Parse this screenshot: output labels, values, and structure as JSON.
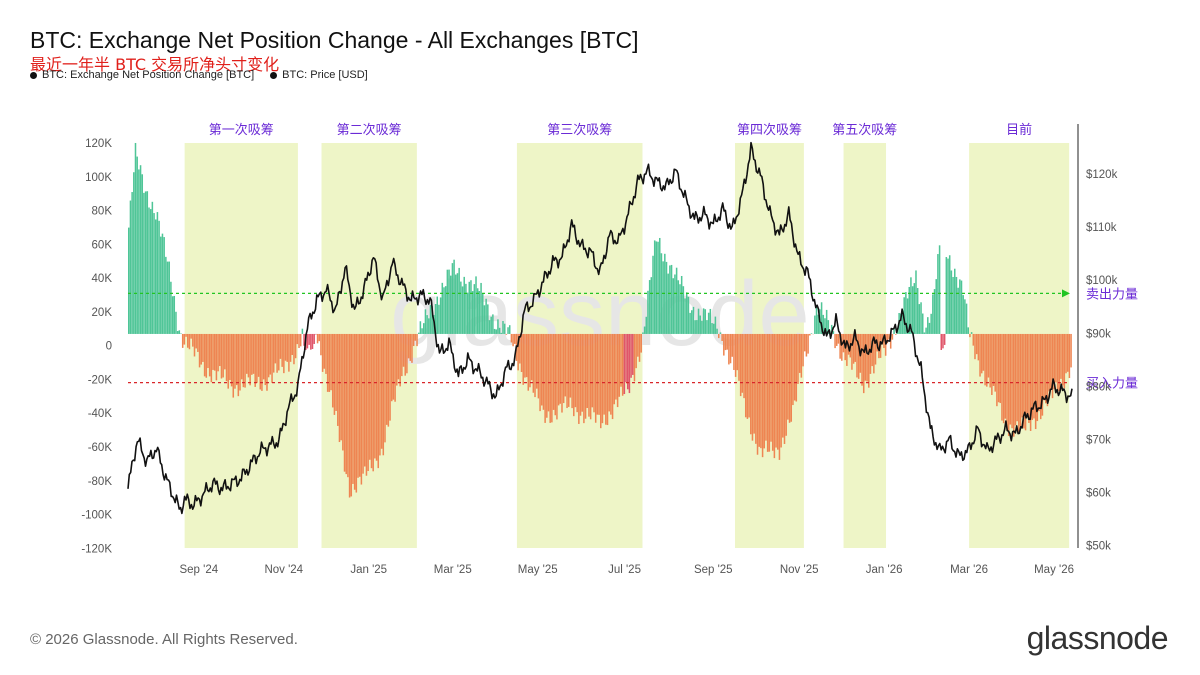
{
  "header": {
    "title": "BTC: Exchange Net Position Change - All Exchanges [BTC]",
    "subtitle": "最近一年半 BTC 交易所净头寸变化"
  },
  "legend": [
    {
      "label": "BTC: Exchange Net Position Change [BTC]",
      "color": "#111111"
    },
    {
      "label": "BTC: Price [USD]",
      "color": "#111111"
    }
  ],
  "footer": {
    "copyright": "© 2026 Glassnode. All Rights Reserved.",
    "brand": "glassnode"
  },
  "chart_data": {
    "type": "bar",
    "colors": {
      "positive": "#4fc597",
      "negative": "#ee8552",
      "negative_alt": "#e0566a",
      "price_line": "#111111",
      "highlight": "#eef5c7",
      "sell_line": "#22c522",
      "buy_line": "#d9272a",
      "phase_label": "#6b2bd6"
    },
    "x_ticks": [
      "Sep '24",
      "Nov '24",
      "Jan '25",
      "Mar '25",
      "May '25",
      "Jul '25",
      "Sep '25",
      "Nov '25",
      "Jan '26",
      "Mar '26",
      "May '26"
    ],
    "y_left": {
      "ticks": [
        "120K",
        "100K",
        "80K",
        "60K",
        "40K",
        "20K",
        "0",
        "-20K",
        "-40K",
        "-60K",
        "-80K",
        "-100K",
        "-120K"
      ],
      "range": [
        -132000,
        127000
      ]
    },
    "y_right": {
      "ticks": [
        "$120k",
        "$110k",
        "$100k",
        "$90k",
        "$80k",
        "$70k",
        "$60k",
        "$50k"
      ],
      "range": [
        50000,
        128000
      ]
    },
    "phases": [
      {
        "label": "第一次吸筹",
        "start": 0.06,
        "end": 0.18
      },
      {
        "label": "第二次吸筹",
        "start": 0.205,
        "end": 0.306
      },
      {
        "label": "第三次吸筹",
        "start": 0.412,
        "end": 0.545
      },
      {
        "label": "第四次吸筹",
        "start": 0.643,
        "end": 0.716
      },
      {
        "label": "第五次吸筹",
        "start": 0.758,
        "end": 0.803
      },
      {
        "label": "目前",
        "start": 0.891,
        "end": 0.997
      }
    ],
    "ref_lines": [
      {
        "label": "卖出力量",
        "value": 25000,
        "color": "#22c522"
      },
      {
        "label": "买入力量",
        "value": -30000,
        "color": "#d9272a"
      }
    ],
    "net_position_keyframes": [
      [
        0.0,
        60000
      ],
      [
        0.008,
        110000
      ],
      [
        0.018,
        90000
      ],
      [
        0.03,
        75000
      ],
      [
        0.045,
        35000
      ],
      [
        0.055,
        2000
      ],
      [
        0.06,
        -5000
      ],
      [
        0.08,
        -20000
      ],
      [
        0.11,
        -32000
      ],
      [
        0.14,
        -30000
      ],
      [
        0.165,
        -22000
      ],
      [
        0.18,
        -8000
      ],
      [
        0.19,
        5000
      ],
      [
        0.2,
        2000
      ],
      [
        0.215,
        -40000
      ],
      [
        0.235,
        -95000
      ],
      [
        0.25,
        -90000
      ],
      [
        0.27,
        -70000
      ],
      [
        0.29,
        -25000
      ],
      [
        0.306,
        -5000
      ],
      [
        0.32,
        15000
      ],
      [
        0.345,
        40000
      ],
      [
        0.37,
        28000
      ],
      [
        0.39,
        8000
      ],
      [
        0.405,
        -2000
      ],
      [
        0.412,
        -15000
      ],
      [
        0.44,
        -50000
      ],
      [
        0.47,
        -45000
      ],
      [
        0.5,
        -55000
      ],
      [
        0.53,
        -35000
      ],
      [
        0.545,
        -5000
      ],
      [
        0.56,
        60000
      ],
      [
        0.58,
        35000
      ],
      [
        0.6,
        15000
      ],
      [
        0.625,
        5000
      ],
      [
        0.643,
        -25000
      ],
      [
        0.67,
        -75000
      ],
      [
        0.69,
        -70000
      ],
      [
        0.705,
        -50000
      ],
      [
        0.716,
        -15000
      ],
      [
        0.73,
        15000
      ],
      [
        0.745,
        5000
      ],
      [
        0.758,
        -15000
      ],
      [
        0.78,
        -30000
      ],
      [
        0.803,
        -10000
      ],
      [
        0.82,
        15000
      ],
      [
        0.835,
        35000
      ],
      [
        0.845,
        5000
      ],
      [
        0.852,
        15000
      ],
      [
        0.862,
        60000
      ],
      [
        0.872,
        45000
      ],
      [
        0.885,
        25000
      ],
      [
        0.891,
        0
      ],
      [
        0.91,
        -30000
      ],
      [
        0.93,
        -55000
      ],
      [
        0.95,
        -60000
      ],
      [
        0.97,
        -45000
      ],
      [
        0.985,
        -35000
      ],
      [
        0.997,
        -20000
      ]
    ],
    "price_keyframes": [
      [
        0.0,
        61000
      ],
      [
        0.005,
        66000
      ],
      [
        0.01,
        70000
      ],
      [
        0.015,
        68000
      ],
      [
        0.02,
        66000
      ],
      [
        0.03,
        68500
      ],
      [
        0.04,
        63000
      ],
      [
        0.045,
        61000
      ],
      [
        0.055,
        57000
      ],
      [
        0.06,
        59000
      ],
      [
        0.07,
        58000
      ],
      [
        0.08,
        60000
      ],
      [
        0.09,
        62000
      ],
      [
        0.1,
        61000
      ],
      [
        0.12,
        63000
      ],
      [
        0.14,
        68000
      ],
      [
        0.16,
        70000
      ],
      [
        0.17,
        76000
      ],
      [
        0.18,
        80000
      ],
      [
        0.19,
        91000
      ],
      [
        0.2,
        96000
      ],
      [
        0.21,
        98000
      ],
      [
        0.22,
        94000
      ],
      [
        0.23,
        102000
      ],
      [
        0.24,
        94000
      ],
      [
        0.25,
        98000
      ],
      [
        0.26,
        104000
      ],
      [
        0.27,
        96000
      ],
      [
        0.28,
        103000
      ],
      [
        0.29,
        99000
      ],
      [
        0.3,
        96000
      ],
      [
        0.31,
        97000
      ],
      [
        0.32,
        96000
      ],
      [
        0.33,
        86000
      ],
      [
        0.34,
        88000
      ],
      [
        0.35,
        82000
      ],
      [
        0.36,
        85000
      ],
      [
        0.375,
        82000
      ],
      [
        0.39,
        78000
      ],
      [
        0.4,
        83000
      ],
      [
        0.41,
        85000
      ],
      [
        0.42,
        94000
      ],
      [
        0.43,
        96000
      ],
      [
        0.45,
        103000
      ],
      [
        0.46,
        104000
      ],
      [
        0.47,
        110000
      ],
      [
        0.48,
        106000
      ],
      [
        0.49,
        105000
      ],
      [
        0.5,
        101000
      ],
      [
        0.51,
        108000
      ],
      [
        0.52,
        107000
      ],
      [
        0.53,
        112000
      ],
      [
        0.54,
        118000
      ],
      [
        0.55,
        120000
      ],
      [
        0.56,
        118000
      ],
      [
        0.57,
        117000
      ],
      [
        0.58,
        120000
      ],
      [
        0.59,
        115000
      ],
      [
        0.6,
        111000
      ],
      [
        0.61,
        112000
      ],
      [
        0.62,
        110000
      ],
      [
        0.63,
        113000
      ],
      [
        0.64,
        109000
      ],
      [
        0.65,
        115000
      ],
      [
        0.66,
        124000
      ],
      [
        0.67,
        119000
      ],
      [
        0.68,
        112000
      ],
      [
        0.69,
        108000
      ],
      [
        0.7,
        112000
      ],
      [
        0.71,
        104000
      ],
      [
        0.72,
        101000
      ],
      [
        0.73,
        94000
      ],
      [
        0.74,
        89000
      ],
      [
        0.75,
        92000
      ],
      [
        0.76,
        87000
      ],
      [
        0.77,
        89000
      ],
      [
        0.78,
        86000
      ],
      [
        0.79,
        88000
      ],
      [
        0.8,
        88000
      ],
      [
        0.81,
        90000
      ],
      [
        0.82,
        93000
      ],
      [
        0.83,
        90000
      ],
      [
        0.84,
        83000
      ],
      [
        0.85,
        72000
      ],
      [
        0.86,
        68000
      ],
      [
        0.87,
        70000
      ],
      [
        0.88,
        67000
      ],
      [
        0.89,
        68000
      ],
      [
        0.9,
        72000
      ],
      [
        0.91,
        68000
      ],
      [
        0.92,
        70000
      ],
      [
        0.93,
        72000
      ],
      [
        0.94,
        71000
      ],
      [
        0.95,
        74000
      ],
      [
        0.96,
        76000
      ],
      [
        0.97,
        77000
      ],
      [
        0.98,
        80000
      ],
      [
        0.99,
        79000
      ],
      [
        1.0,
        78000
      ]
    ]
  }
}
